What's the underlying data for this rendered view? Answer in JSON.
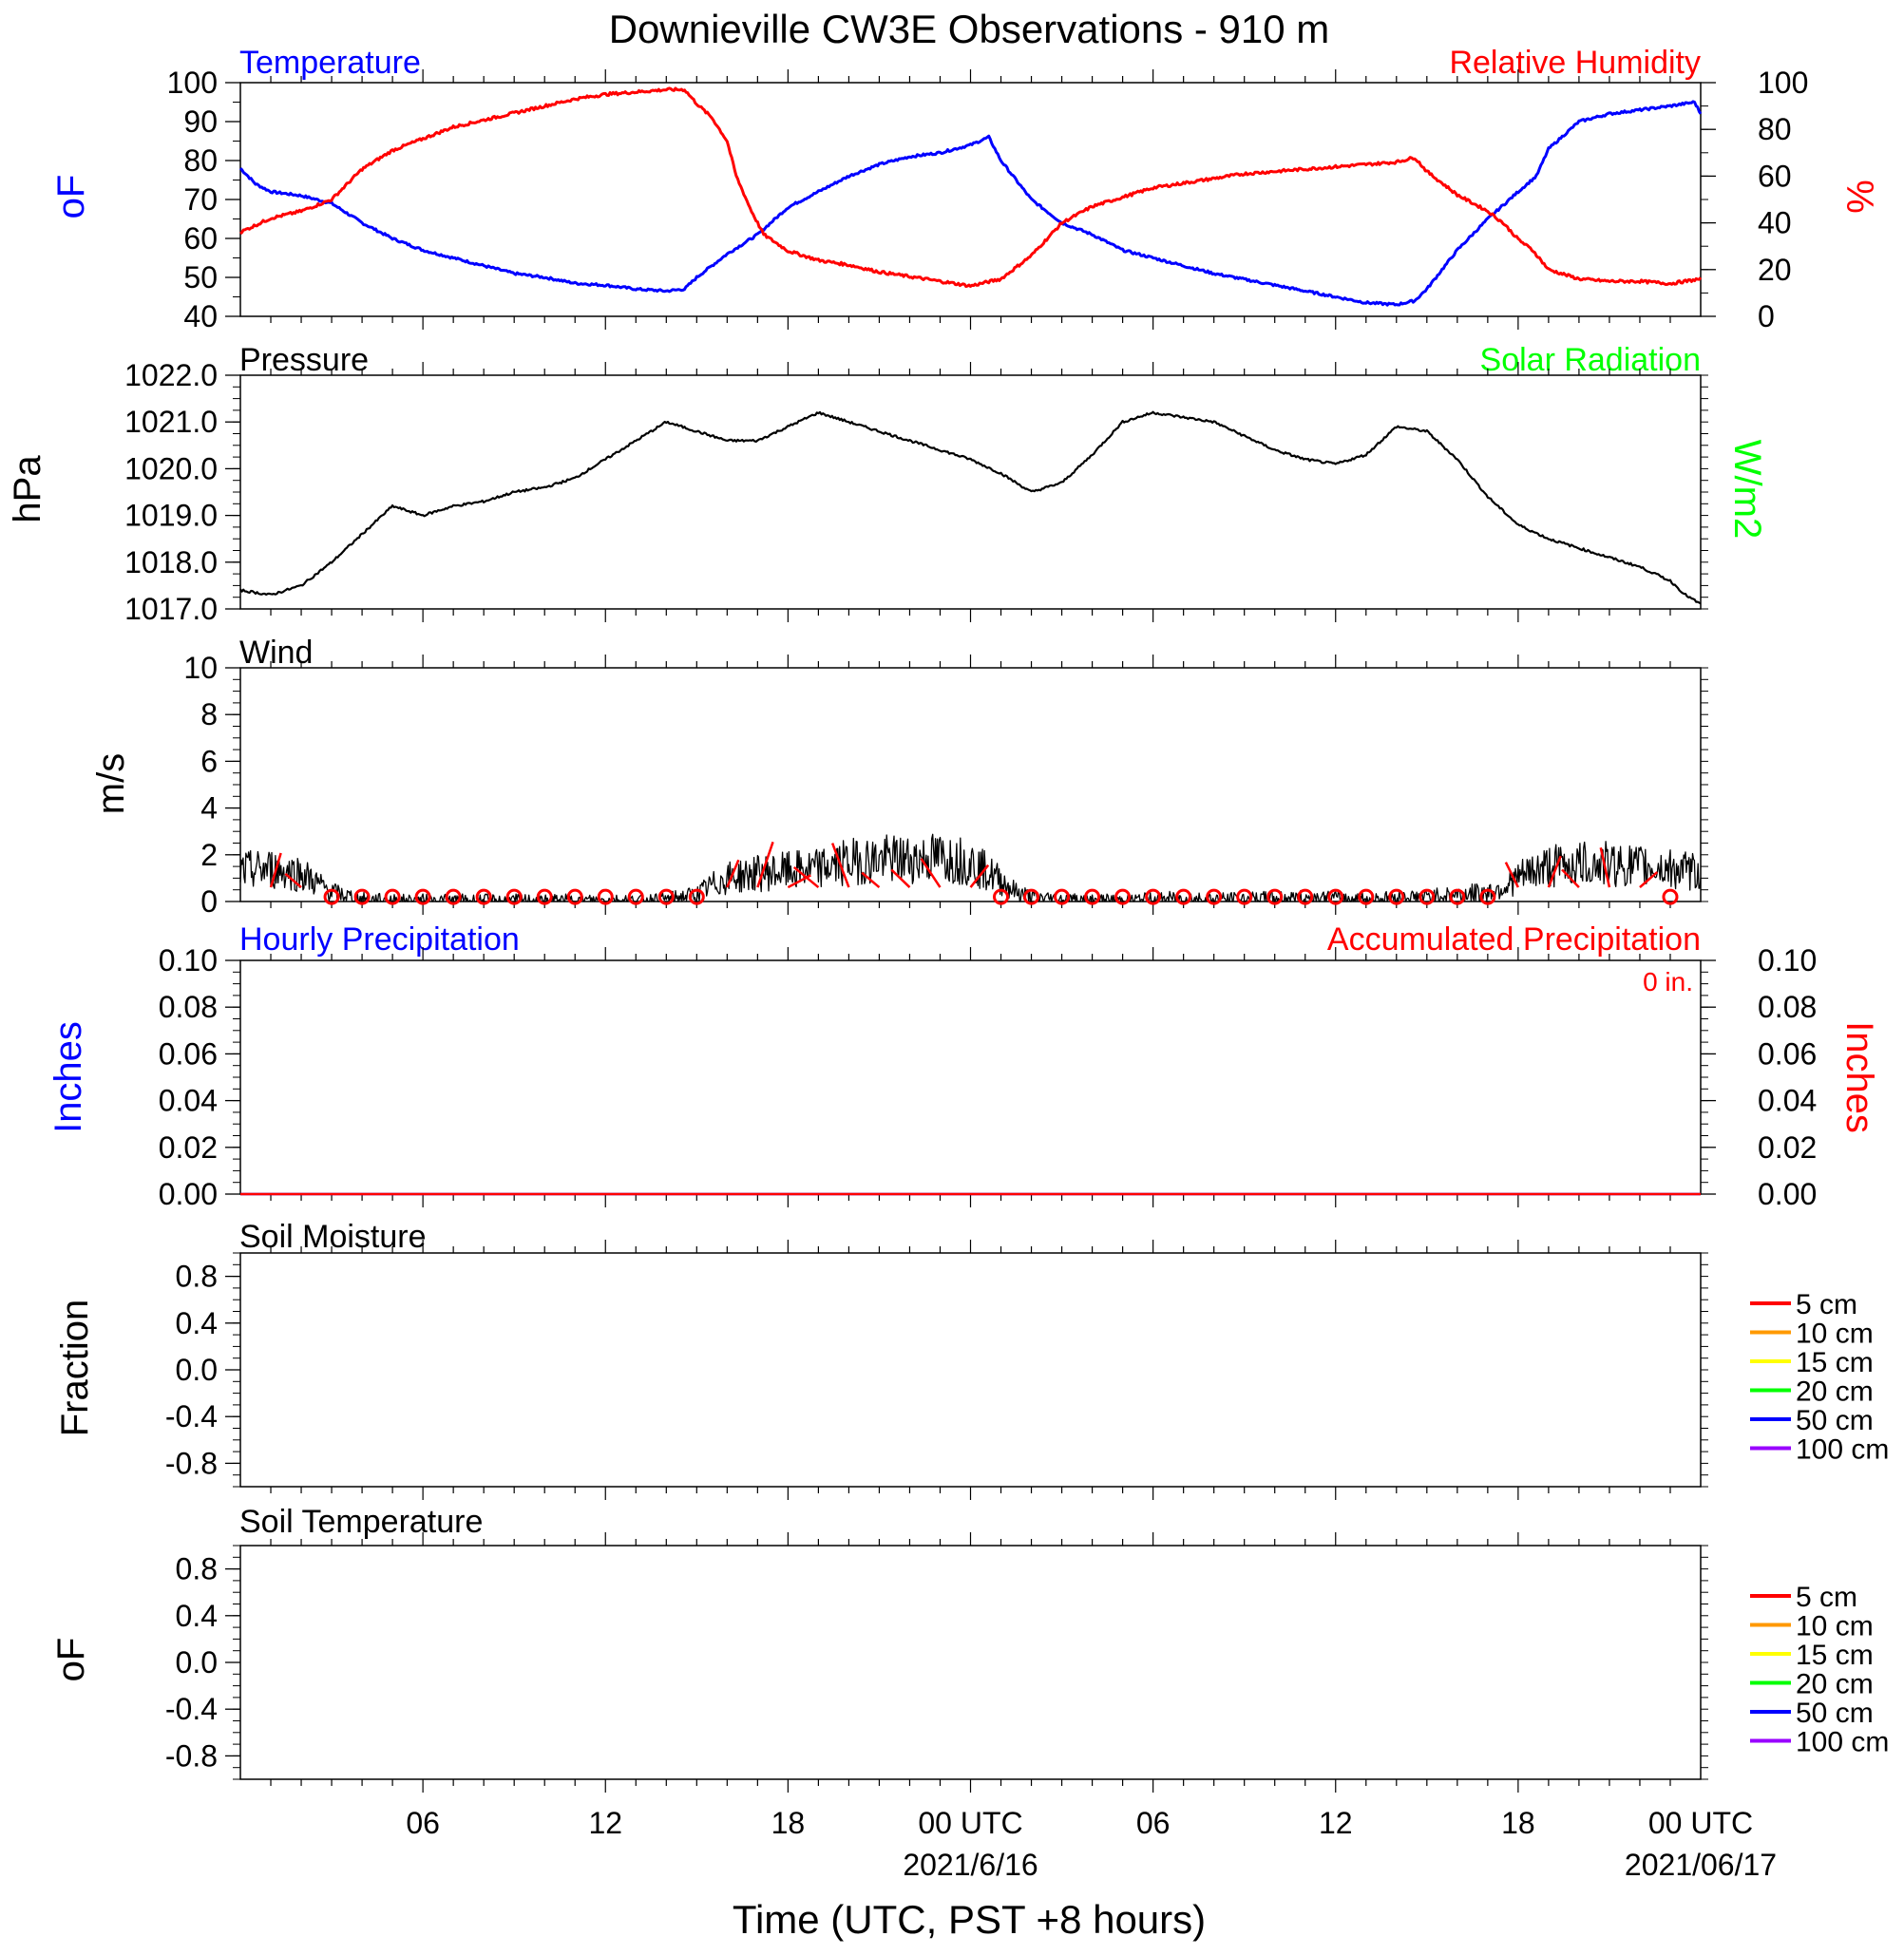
{
  "title": "Downieville CW3E Observations - 910 m",
  "x_axis": {
    "label": "Time (UTC, PST +8 hours)",
    "ticks": [
      {
        "h": 6,
        "label": "06"
      },
      {
        "h": 12,
        "label": "12"
      },
      {
        "h": 18,
        "label": "18"
      },
      {
        "h": 24,
        "label": "00 UTC",
        "date": "2021/6/16"
      },
      {
        "h": 30,
        "label": "06"
      },
      {
        "h": 36,
        "label": "12"
      },
      {
        "h": 42,
        "label": "18"
      },
      {
        "h": 48,
        "label": "00 UTC",
        "date": "2021/06/17"
      }
    ]
  },
  "panels": {
    "temperature": {
      "title": "Temperature",
      "ylabel": "oF",
      "right_title": "Relative Humidity",
      "right_ylabel": "%"
    },
    "pressure": {
      "title": "Pressure",
      "ylabel": "hPa",
      "right_title": "Solar Radiation",
      "right_ylabel": "W/m2"
    },
    "wind": {
      "title": "Wind",
      "ylabel": "m/s"
    },
    "precip": {
      "title": "Hourly Precipitation",
      "ylabel": "Inches",
      "right_title": "Accumulated Precipitation",
      "right_ylabel": "Inches",
      "accum_text": "0 in."
    },
    "soil_moisture": {
      "title": "Soil Moisture",
      "ylabel": "Fraction"
    },
    "soil_temperature": {
      "title": "Soil Temperature",
      "ylabel": "oF"
    }
  },
  "soil_legend": [
    {
      "name": "5 cm",
      "color": "#ff0000"
    },
    {
      "name": "10 cm",
      "color": "#ff9900"
    },
    {
      "name": "15 cm",
      "color": "#ffff00"
    },
    {
      "name": "20 cm",
      "color": "#00ff00"
    },
    {
      "name": "50 cm",
      "color": "#0000ff"
    },
    {
      "name": "100 cm",
      "color": "#9900ff"
    }
  ],
  "colors": {
    "temperature": "#0000ff",
    "humidity": "#ff0000",
    "solar": "#00ff00",
    "pressure": "#000000",
    "wind": "#000000",
    "wind_barb": "#ff0000",
    "accum": "#ff0000"
  },
  "chart_data": [
    {
      "type": "line",
      "title": "Temperature",
      "x_units": "hours since 2021/6/15 00 UTC",
      "xlim": [
        0,
        48
      ],
      "series": [
        {
          "name": "Temperature",
          "axis": "left",
          "ylim": [
            40,
            100
          ],
          "x": [
            0,
            0.5,
            1,
            2,
            3,
            4,
            5,
            6,
            7,
            8,
            9,
            10,
            11,
            12,
            13,
            14,
            14.6,
            15,
            16,
            17,
            18,
            19,
            20,
            21,
            22,
            23,
            24,
            24.6,
            25,
            26,
            27,
            28,
            29,
            30,
            31,
            32,
            33,
            34,
            35,
            36,
            37,
            38,
            38.6,
            39,
            40,
            41,
            42,
            42.6,
            43,
            44,
            45,
            46,
            47,
            47.8,
            48
          ],
          "y": [
            78,
            74,
            72,
            71,
            69,
            64,
            60,
            57,
            55,
            53,
            51,
            50,
            48.5,
            48,
            47,
            46.5,
            47,
            50,
            56,
            61,
            68,
            72,
            76,
            79,
            81,
            82,
            84,
            86,
            80,
            70,
            64,
            61,
            57,
            55,
            53,
            51,
            49.5,
            48,
            46.5,
            45,
            43.5,
            43,
            44,
            47,
            57,
            65,
            72,
            76,
            83,
            90,
            92,
            93,
            94,
            95,
            92
          ]
        },
        {
          "name": "Relative Humidity",
          "axis": "right",
          "ylim": [
            0,
            100
          ],
          "x": [
            0,
            1,
            2,
            3,
            4,
            5,
            6,
            7,
            8,
            9,
            10,
            11,
            12,
            13,
            14,
            14.6,
            15,
            15.5,
            16,
            16.3,
            16.8,
            17.2,
            18,
            19,
            20,
            21,
            22,
            23,
            24,
            25,
            26,
            27,
            28,
            29,
            30,
            31,
            32,
            33,
            34,
            35,
            36,
            37,
            38,
            38.6,
            39,
            40,
            41,
            41.5,
            42,
            42.5,
            43,
            44,
            45,
            46,
            47,
            48
          ],
          "y": [
            36,
            42,
            45,
            50,
            63,
            71,
            76,
            81,
            84,
            87,
            90,
            93,
            95,
            96,
            97,
            97,
            91,
            85,
            75,
            60,
            45,
            35,
            28,
            24,
            22,
            19,
            17,
            15,
            13,
            16,
            26,
            40,
            47,
            51,
            55,
            57,
            59,
            61,
            62,
            63,
            64,
            65,
            66,
            68,
            62,
            52,
            45,
            40,
            33,
            28,
            20,
            16,
            15,
            15,
            14,
            16
          ]
        }
      ]
    },
    {
      "type": "line",
      "title": "Pressure",
      "xlim": [
        0,
        48
      ],
      "ylim": [
        1017.0,
        1022.0
      ],
      "series": [
        {
          "name": "Pressure",
          "x": [
            0,
            1,
            2,
            3,
            4,
            5,
            6,
            7,
            8,
            9,
            10,
            11,
            12,
            13,
            14,
            15,
            16,
            17,
            18,
            19,
            20,
            21,
            22,
            23,
            24,
            25,
            26,
            27,
            28,
            29,
            30,
            31,
            32,
            33,
            34,
            35,
            36,
            37,
            38,
            39,
            40,
            41,
            42,
            43,
            44,
            45,
            46,
            47,
            47.5,
            48
          ],
          "y": [
            1017.4,
            1017.3,
            1017.5,
            1018.0,
            1018.6,
            1019.2,
            1019.0,
            1019.2,
            1019.3,
            1019.5,
            1019.6,
            1019.8,
            1020.2,
            1020.6,
            1021.0,
            1020.8,
            1020.6,
            1020.6,
            1020.9,
            1021.2,
            1021.0,
            1020.8,
            1020.6,
            1020.4,
            1020.2,
            1019.9,
            1019.5,
            1019.7,
            1020.3,
            1021.0,
            1021.2,
            1021.1,
            1021.0,
            1020.7,
            1020.4,
            1020.2,
            1020.1,
            1020.3,
            1020.9,
            1020.8,
            1020.2,
            1019.4,
            1018.8,
            1018.5,
            1018.3,
            1018.1,
            1017.9,
            1017.6,
            1017.3,
            1017.1
          ]
        }
      ]
    },
    {
      "type": "line",
      "title": "Wind",
      "xlim": [
        0,
        48
      ],
      "ylim": [
        0,
        10
      ],
      "series": [
        {
          "name": "Wind",
          "x": [
            0,
            1,
            2,
            2.5,
            3,
            4,
            5,
            6,
            7,
            8,
            9,
            10,
            11,
            12,
            13,
            14,
            15,
            15.5,
            16,
            16.5,
            17,
            18,
            19,
            20,
            21,
            22,
            23,
            24,
            25,
            25.5,
            26,
            27,
            28,
            29,
            30,
            31,
            32,
            33,
            34,
            35,
            36,
            37,
            38,
            39,
            40,
            41,
            41.5,
            42,
            42.5,
            43,
            44,
            45,
            46,
            47,
            47.5,
            48
          ],
          "y": [
            1.3,
            1.4,
            1.2,
            0.8,
            0.4,
            0.1,
            0.05,
            0.05,
            0.05,
            0.05,
            0.05,
            0.05,
            0.05,
            0.05,
            0.05,
            0.1,
            0.3,
            0.7,
            1.0,
            1.1,
            1.2,
            1.3,
            1.4,
            1.7,
            1.8,
            1.8,
            1.9,
            1.7,
            0.9,
            0.4,
            0.2,
            0.1,
            0.05,
            0.05,
            0.1,
            0.15,
            0.1,
            0.1,
            0.15,
            0.15,
            0.15,
            0.1,
            0.15,
            0.2,
            0.3,
            0.4,
            0.6,
            1.0,
            1.3,
            1.5,
            1.6,
            1.6,
            1.5,
            1.4,
            1.3,
            1.2
          ]
        }
      ],
      "barbs": [
        {
          "h": 1,
          "calm": false
        },
        {
          "h": 2,
          "calm": false
        },
        {
          "h": 3,
          "calm": true
        },
        {
          "h": 4,
          "calm": true
        },
        {
          "h": 5,
          "calm": true
        },
        {
          "h": 6,
          "calm": true
        },
        {
          "h": 7,
          "calm": true
        },
        {
          "h": 8,
          "calm": true
        },
        {
          "h": 9,
          "calm": true
        },
        {
          "h": 10,
          "calm": true
        },
        {
          "h": 11,
          "calm": true
        },
        {
          "h": 12,
          "calm": true
        },
        {
          "h": 13,
          "calm": true
        },
        {
          "h": 14,
          "calm": true
        },
        {
          "h": 15,
          "calm": true
        },
        {
          "h": 16,
          "calm": false
        },
        {
          "h": 17,
          "calm": false
        },
        {
          "h": 18,
          "calm": false
        },
        {
          "h": 19,
          "calm": false
        },
        {
          "h": 20,
          "calm": false
        },
        {
          "h": 21,
          "calm": false
        },
        {
          "h": 22,
          "calm": false
        },
        {
          "h": 23,
          "calm": false
        },
        {
          "h": 24,
          "calm": false
        },
        {
          "h": 25,
          "calm": true
        },
        {
          "h": 26,
          "calm": true
        },
        {
          "h": 27,
          "calm": true
        },
        {
          "h": 28,
          "calm": true
        },
        {
          "h": 29,
          "calm": true
        },
        {
          "h": 30,
          "calm": true
        },
        {
          "h": 31,
          "calm": true
        },
        {
          "h": 32,
          "calm": true
        },
        {
          "h": 33,
          "calm": true
        },
        {
          "h": 34,
          "calm": true
        },
        {
          "h": 35,
          "calm": true
        },
        {
          "h": 36,
          "calm": true
        },
        {
          "h": 37,
          "calm": true
        },
        {
          "h": 38,
          "calm": true
        },
        {
          "h": 39,
          "calm": true
        },
        {
          "h": 40,
          "calm": true
        },
        {
          "h": 41,
          "calm": true
        },
        {
          "h": 42,
          "calm": false
        },
        {
          "h": 43,
          "calm": false
        },
        {
          "h": 44,
          "calm": false
        },
        {
          "h": 45,
          "calm": false
        },
        {
          "h": 46,
          "calm": false
        },
        {
          "h": 47,
          "calm": true
        }
      ]
    },
    {
      "type": "line",
      "title": "Hourly Precipitation",
      "xlim": [
        0,
        48
      ],
      "ylim": [
        0.0,
        0.1
      ],
      "series": [
        {
          "name": "Hourly Precipitation",
          "x": [
            0,
            48
          ],
          "y": [
            0,
            0
          ]
        },
        {
          "name": "Accumulated Precipitation",
          "x": [
            0,
            48
          ],
          "y": [
            0,
            0
          ]
        }
      ]
    },
    {
      "type": "line",
      "title": "Soil Moisture",
      "xlim": [
        0,
        48
      ],
      "ylim": [
        -1.0,
        1.0
      ],
      "yticks": [
        0.8,
        0.4,
        0.0,
        -0.4,
        -0.8
      ],
      "series": []
    },
    {
      "type": "line",
      "title": "Soil Temperature",
      "xlim": [
        0,
        48
      ],
      "ylim": [
        -1.0,
        1.0
      ],
      "yticks": [
        0.8,
        0.4,
        0.0,
        -0.4,
        -0.8
      ],
      "series": []
    }
  ]
}
